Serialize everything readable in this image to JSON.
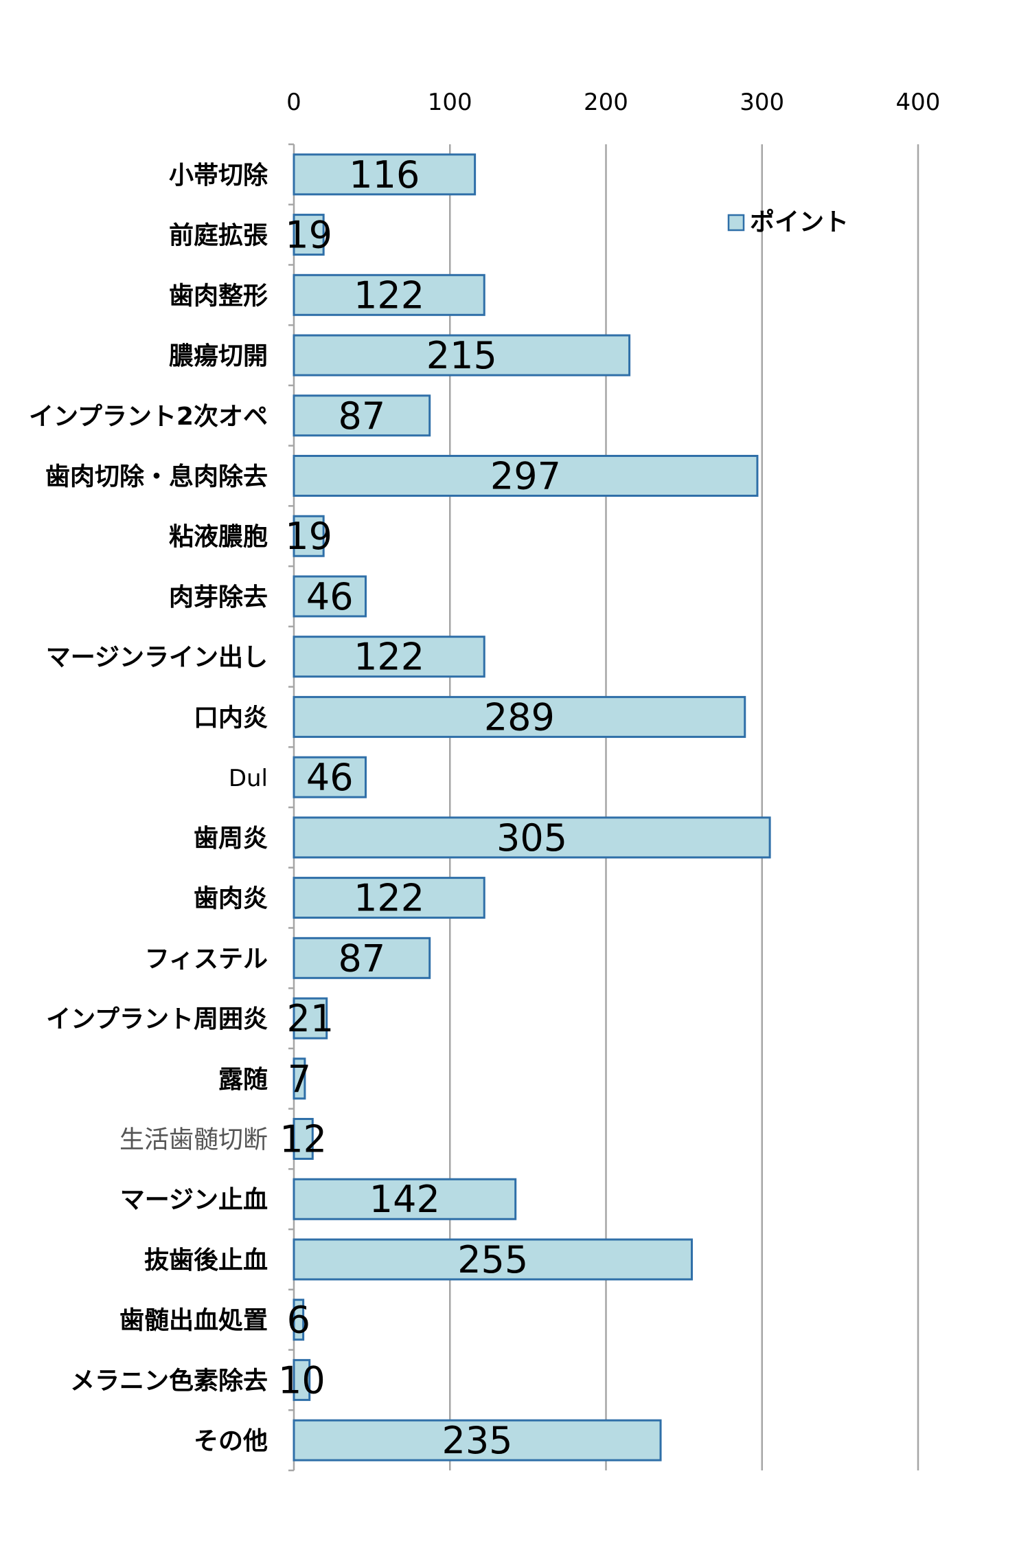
{
  "chart_data": {
    "type": "bar",
    "orientation": "horizontal",
    "categories": [
      "小帯切除",
      "前庭拡張",
      "歯肉整形",
      "膿瘍切開",
      "インプラント2次オペ",
      "歯肉切除・息肉除去",
      "粘液膿胞",
      "肉芽除去",
      "マージンライン出し",
      "口内炎",
      "Dul",
      "歯周炎",
      "歯肉炎",
      "フィステル",
      "インプラント周囲炎",
      "露随",
      "生活歯髄切断",
      "マージン止血",
      "抜歯後止血",
      "歯髄出血処置",
      "メラニン色素除去",
      "その他"
    ],
    "series": [
      {
        "name": "ポイント",
        "values": [
          116,
          19,
          122,
          215,
          87,
          297,
          19,
          46,
          122,
          289,
          46,
          305,
          122,
          87,
          21,
          7,
          12,
          142,
          255,
          6,
          10,
          235
        ]
      }
    ],
    "xticks": [
      "0",
      "100",
      "200",
      "300",
      "400"
    ],
    "xlim": [
      0,
      400
    ],
    "axis_position": "top",
    "grid": true,
    "legend_placement": "top-right",
    "colors": {
      "bar_fill": "#b7dbe3",
      "bar_stroke": "#2f6fa8",
      "grid": "#a6a6a6"
    }
  }
}
